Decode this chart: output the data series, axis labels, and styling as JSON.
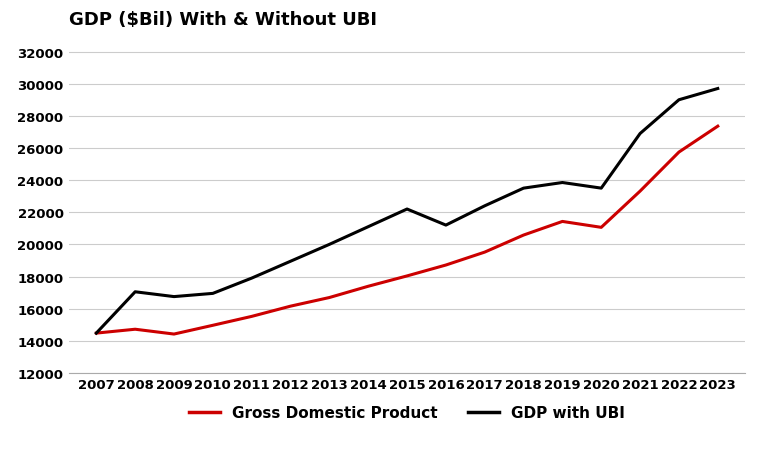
{
  "title": "GDP ($Bil) With & Without UBI",
  "years": [
    2007,
    2008,
    2009,
    2010,
    2011,
    2012,
    2013,
    2014,
    2015,
    2016,
    2017,
    2018,
    2019,
    2020,
    2021,
    2022,
    2023
  ],
  "gdp": [
    14478,
    14719,
    14419,
    14964,
    15518,
    16155,
    16692,
    17393,
    18037,
    18715,
    19519,
    20580,
    21428,
    21060,
    23315,
    25744,
    27357
  ],
  "gdp_ubi": [
    14478,
    17050,
    16750,
    16950,
    17900,
    18950,
    20000,
    21100,
    22200,
    21200,
    22400,
    23500,
    23850,
    23500,
    26900,
    29000,
    29700
  ],
  "gdp_color": "#cc0000",
  "ubi_color": "#000000",
  "background_color": "#ffffff",
  "ylim": [
    12000,
    33000
  ],
  "yticks": [
    12000,
    14000,
    16000,
    18000,
    20000,
    22000,
    24000,
    26000,
    28000,
    30000,
    32000
  ],
  "grid_color": "#cccccc",
  "legend_gdp": "Gross Domestic Product",
  "legend_ubi": "GDP with UBI",
  "title_fontsize": 13,
  "tick_fontsize": 9.5,
  "legend_fontsize": 11,
  "line_width": 2.2
}
